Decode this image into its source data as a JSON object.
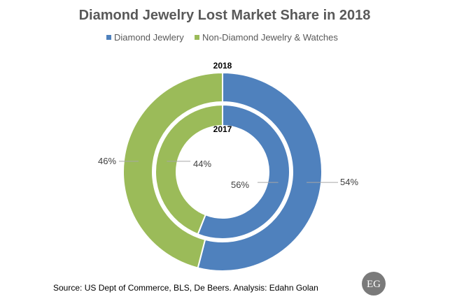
{
  "chart_data": {
    "type": "pie",
    "title": "Diamond Jewelry Lost Market Share in 2018",
    "legend": [
      "Diamond Jewlery",
      "Non-Diamond Jewelry & Watches"
    ],
    "legend_position": "top",
    "colors": [
      "#4f81bd",
      "#9bbb59"
    ],
    "rings": [
      {
        "name": "2018",
        "slices": [
          {
            "name": "Diamond Jewlery",
            "value": 54,
            "label": "54%"
          },
          {
            "name": "Non-Diamond Jewelry & Watches",
            "value": 46,
            "label": "46%"
          }
        ]
      },
      {
        "name": "2017",
        "slices": [
          {
            "name": "Diamond Jewlery",
            "value": 56,
            "label": "56%"
          },
          {
            "name": "Non-Diamond Jewelry & Watches",
            "value": 44,
            "label": "44%"
          }
        ]
      }
    ]
  },
  "source": "Source: US Dept of Commerce, BLS, De Beers. Analysis: Edahn Golan",
  "logo_text": "EG"
}
